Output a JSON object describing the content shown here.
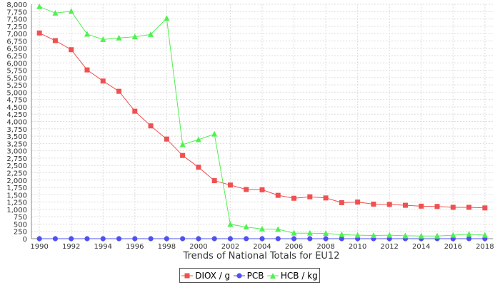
{
  "chart_data": {
    "type": "line",
    "xlabel": "Trends of National Totals for EU12",
    "ylabel": "",
    "x": [
      1990,
      1991,
      1992,
      1993,
      1994,
      1995,
      1996,
      1997,
      1998,
      1999,
      2000,
      2001,
      2002,
      2003,
      2004,
      2005,
      2006,
      2007,
      2008,
      2009,
      2010,
      2011,
      2012,
      2013,
      2014,
      2015,
      2016,
      2017,
      2018
    ],
    "xticks": [
      "1990",
      "1992",
      "1994",
      "1996",
      "1998",
      "2000",
      "2002",
      "2004",
      "2006",
      "2008",
      "2010",
      "2012",
      "2014",
      "2016",
      "2018"
    ],
    "yticks": [
      "0",
      "250",
      "500",
      "750",
      "1,000",
      "1,250",
      "1,500",
      "1,750",
      "2,000",
      "2,250",
      "2,500",
      "2,750",
      "3,000",
      "3,250",
      "3,500",
      "3,750",
      "4,000",
      "4,250",
      "4,500",
      "4,750",
      "5,000",
      "5,250",
      "5,500",
      "5,750",
      "6,000",
      "6,250",
      "6,500",
      "6,750",
      "7,000",
      "7,250",
      "7,500",
      "7,750",
      "8,000"
    ],
    "ylim": [
      0,
      8000
    ],
    "xlim": [
      1989.5,
      2018.5
    ],
    "grid": true,
    "legend_position": "bottom",
    "series": [
      {
        "name": "DIOX / g",
        "color": "#f05050",
        "marker": "square",
        "values": [
          7020,
          6760,
          6450,
          5760,
          5380,
          5030,
          4350,
          3850,
          3400,
          2840,
          2440,
          1980,
          1830,
          1680,
          1670,
          1480,
          1380,
          1430,
          1390,
          1230,
          1250,
          1180,
          1170,
          1140,
          1110,
          1100,
          1070,
          1070,
          1050
        ]
      },
      {
        "name": "PCB",
        "color": "#5050f0",
        "marker": "circle",
        "values": [
          0,
          0,
          0,
          0,
          0,
          0,
          0,
          0,
          0,
          0,
          0,
          0,
          0,
          0,
          0,
          0,
          0,
          0,
          0,
          0,
          0,
          0,
          0,
          0,
          0,
          0,
          0,
          0,
          0
        ]
      },
      {
        "name": "HCB / kg",
        "color": "#50f050",
        "marker": "triangle",
        "values": [
          7920,
          7700,
          7760,
          6980,
          6800,
          6850,
          6890,
          6970,
          7520,
          3210,
          3380,
          3570,
          490,
          400,
          330,
          320,
          190,
          190,
          180,
          140,
          120,
          110,
          120,
          100,
          90,
          90,
          120,
          150,
          120
        ]
      }
    ]
  }
}
